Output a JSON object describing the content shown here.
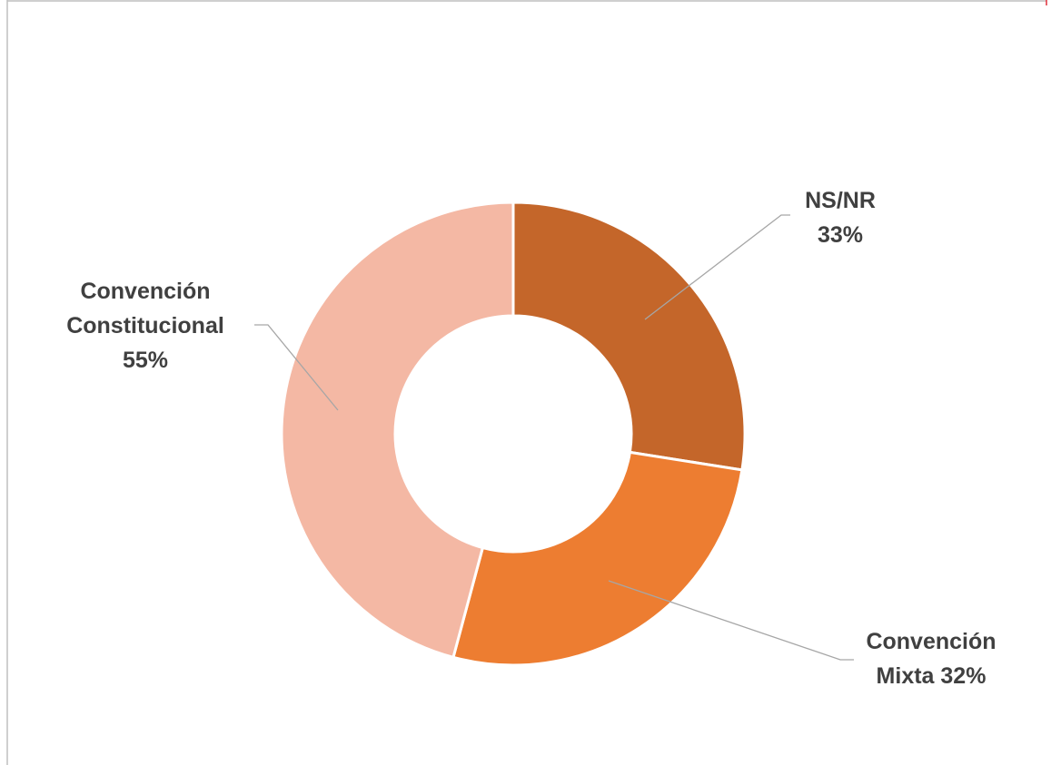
{
  "chart_data": {
    "type": "donut",
    "categories": [
      "NS/NR",
      "Convención Mixta",
      "Convención Constitucional"
    ],
    "values": [
      33,
      32,
      55
    ],
    "value_labels": [
      "33%",
      "32%",
      "55%"
    ],
    "colors": [
      "#c4662a",
      "#ed7d31",
      "#f4b8a4"
    ]
  }
}
